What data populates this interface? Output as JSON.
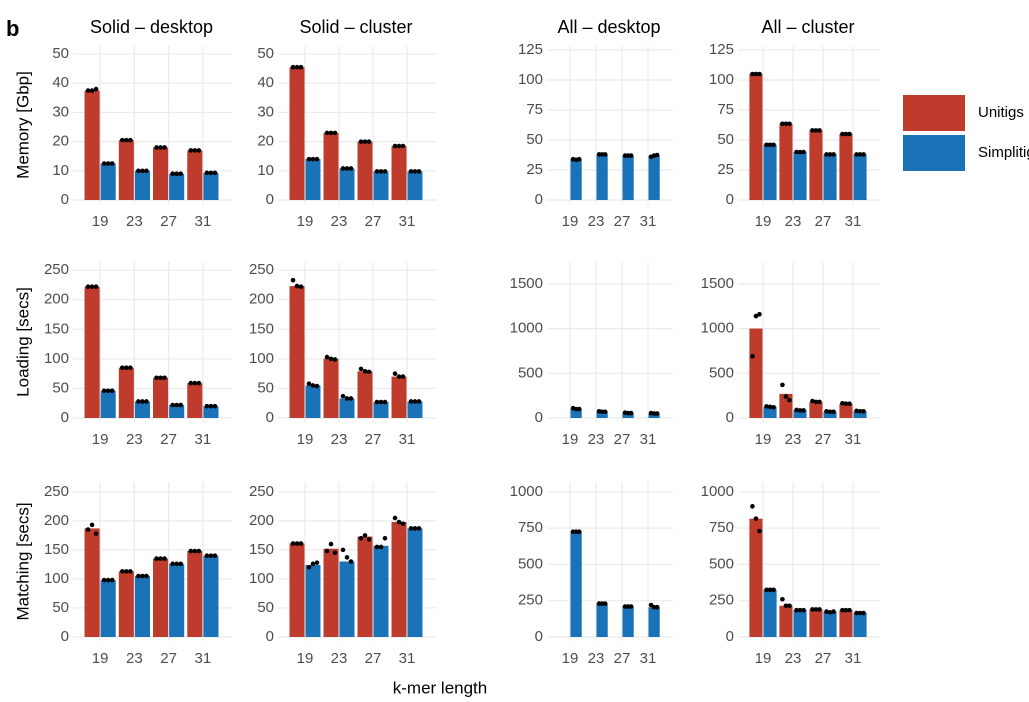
{
  "panel_label": "b",
  "xlabel": "k-mer length",
  "chart_data": [
    {
      "type": "bar",
      "title": "Solid – desktop",
      "ylabel": "Memory [Gbp]",
      "categories": [
        "19",
        "23",
        "27",
        "31"
      ],
      "ylim": [
        0,
        51.4
      ],
      "yticks": [
        0,
        10,
        20,
        30,
        40,
        50
      ],
      "grid": true,
      "series": [
        {
          "name": "Unitigs",
          "color": "#bf3b2b",
          "values": [
            37.5,
            20.5,
            18,
            17
          ],
          "points": [
            [
              37.5,
              37.5,
              38
            ],
            [
              20.5,
              20.5,
              20.5
            ],
            [
              18,
              18,
              18
            ],
            [
              17,
              17,
              17
            ]
          ]
        },
        {
          "name": "Simplitigs",
          "color": "#1a73b6",
          "values": [
            12.5,
            10,
            9,
            9.3
          ],
          "points": [
            [
              12.5,
              12.5,
              12.5
            ],
            [
              10,
              10,
              10
            ],
            [
              9,
              9,
              9
            ],
            [
              9.3,
              9.3,
              9.3
            ]
          ]
        }
      ]
    },
    {
      "type": "bar",
      "title": "Solid – cluster",
      "categories": [
        "19",
        "23",
        "27",
        "31"
      ],
      "ylim": [
        0,
        51.4
      ],
      "yticks": [
        0,
        10,
        20,
        30,
        40,
        50
      ],
      "grid": true,
      "series": [
        {
          "name": "Unitigs",
          "color": "#bf3b2b",
          "values": [
            45.5,
            23,
            20,
            18.5
          ],
          "points": [
            [
              45.5,
              45.5,
              45.5
            ],
            [
              23,
              23,
              23
            ],
            [
              20,
              20,
              20
            ],
            [
              18.5,
              18.5,
              18.5
            ]
          ]
        },
        {
          "name": "Simplitigs",
          "color": "#1a73b6",
          "values": [
            14,
            10.8,
            9.8,
            9.8
          ],
          "points": [
            [
              14,
              14,
              14
            ],
            [
              10.8,
              10.8,
              10.8
            ],
            [
              9.8,
              9.8,
              9.8
            ],
            [
              9.8,
              9.8,
              9.8
            ]
          ]
        }
      ]
    },
    {
      "type": "bar",
      "title": "All – desktop",
      "categories": [
        "19",
        "23",
        "27",
        "31"
      ],
      "ylim": [
        0,
        125
      ],
      "yticks": [
        0,
        25,
        50,
        75,
        100,
        125
      ],
      "grid": true,
      "series": [
        {
          "name": "Unitigs",
          "color": "#bf3b2b",
          "values": [
            null,
            null,
            null,
            null
          ],
          "points": [
            null,
            null,
            null,
            null
          ]
        },
        {
          "name": "Simplitigs",
          "color": "#1a73b6",
          "values": [
            34,
            38,
            37,
            37
          ],
          "points": [
            [
              34,
              33.5,
              34
            ],
            [
              38,
              38,
              38
            ],
            [
              37,
              37,
              37
            ],
            [
              36,
              37,
              37.5
            ]
          ]
        }
      ]
    },
    {
      "type": "bar",
      "title": "All – cluster",
      "categories": [
        "19",
        "23",
        "27",
        "31"
      ],
      "ylim": [
        0,
        125
      ],
      "yticks": [
        0,
        25,
        50,
        75,
        100,
        125
      ],
      "grid": true,
      "series": [
        {
          "name": "Unitigs",
          "color": "#bf3b2b",
          "values": [
            105,
            63.5,
            58,
            55
          ],
          "points": [
            [
              105,
              105,
              105
            ],
            [
              63.5,
              63.5,
              63.5
            ],
            [
              58,
              58,
              58
            ],
            [
              55,
              55,
              55
            ]
          ]
        },
        {
          "name": "Simplitigs",
          "color": "#1a73b6",
          "values": [
            46,
            40,
            38,
            38
          ],
          "points": [
            [
              46,
              46,
              46
            ],
            [
              40,
              40,
              40
            ],
            [
              38,
              38,
              38
            ],
            [
              38,
              38,
              38
            ]
          ]
        }
      ]
    },
    {
      "type": "bar",
      "ylabel": "Loading [secs]",
      "categories": [
        "19",
        "23",
        "27",
        "31"
      ],
      "ylim": [
        0,
        257
      ],
      "yticks": [
        0,
        50,
        100,
        150,
        200,
        250
      ],
      "grid": true,
      "series": [
        {
          "name": "Unitigs",
          "color": "#bf3b2b",
          "values": [
            222,
            85,
            68,
            59
          ],
          "points": [
            [
              222,
              222,
              222
            ],
            [
              85,
              85,
              85
            ],
            [
              68,
              68,
              68
            ],
            [
              59,
              59,
              59
            ]
          ]
        },
        {
          "name": "Simplitigs",
          "color": "#1a73b6",
          "values": [
            46,
            28,
            22,
            20
          ],
          "points": [
            [
              46,
              46,
              46
            ],
            [
              28,
              28,
              28
            ],
            [
              22,
              22,
              22
            ],
            [
              20,
              20,
              20
            ]
          ]
        }
      ]
    },
    {
      "type": "bar",
      "categories": [
        "19",
        "23",
        "27",
        "31"
      ],
      "ylim": [
        0,
        257
      ],
      "yticks": [
        0,
        50,
        100,
        150,
        200,
        250
      ],
      "grid": true,
      "series": [
        {
          "name": "Unitigs",
          "color": "#bf3b2b",
          "values": [
            223,
            100,
            79,
            70
          ],
          "points": [
            [
              233,
              223,
              222
            ],
            [
              103,
              100,
              99
            ],
            [
              83,
              79,
              78
            ],
            [
              75,
              70,
              70
            ]
          ]
        },
        {
          "name": "Simplitigs",
          "color": "#1a73b6",
          "values": [
            55,
            33,
            27,
            28
          ],
          "points": [
            [
              58,
              55,
              54
            ],
            [
              37,
              33,
              33
            ],
            [
              27,
              27,
              27
            ],
            [
              28,
              28,
              28
            ]
          ]
        }
      ]
    },
    {
      "type": "bar",
      "categories": [
        "19",
        "23",
        "27",
        "31"
      ],
      "ylim": [
        0,
        1700
      ],
      "yticks": [
        0,
        500,
        1000,
        1500
      ],
      "grid": true,
      "series": [
        {
          "name": "Unitigs",
          "color": "#bf3b2b",
          "values": [
            null,
            null,
            null,
            null
          ],
          "points": [
            null,
            null,
            null,
            null
          ]
        },
        {
          "name": "Simplitigs",
          "color": "#1a73b6",
          "values": [
            100,
            70,
            55,
            50
          ],
          "points": [
            [
              110,
              100,
              100
            ],
            [
              75,
              70,
              70
            ],
            [
              60,
              55,
              55
            ],
            [
              55,
              50,
              50
            ]
          ]
        }
      ]
    },
    {
      "type": "bar",
      "categories": [
        "19",
        "23",
        "27",
        "31"
      ],
      "ylim": [
        0,
        1700
      ],
      "yticks": [
        0,
        500,
        1000,
        1500
      ],
      "grid": true,
      "series": [
        {
          "name": "Unitigs",
          "color": "#bf3b2b",
          "values": [
            1000,
            270,
            180,
            160
          ],
          "points": [
            [
              690,
              1140,
              1160
            ],
            [
              370,
              240,
              200
            ],
            [
              190,
              180,
              180
            ],
            [
              165,
              160,
              160
            ]
          ]
        },
        {
          "name": "Simplitigs",
          "color": "#1a73b6",
          "values": [
            125,
            85,
            70,
            75
          ],
          "points": [
            [
              130,
              125,
              120
            ],
            [
              90,
              85,
              85
            ],
            [
              75,
              70,
              70
            ],
            [
              80,
              75,
              75
            ]
          ]
        }
      ]
    },
    {
      "type": "bar",
      "ylabel": "Matching [secs]",
      "categories": [
        "19",
        "23",
        "27",
        "31"
      ],
      "ylim": [
        0,
        260
      ],
      "yticks": [
        0,
        50,
        100,
        150,
        200,
        250
      ],
      "grid": true,
      "series": [
        {
          "name": "Unitigs",
          "color": "#bf3b2b",
          "values": [
            187,
            113,
            135,
            148
          ],
          "points": [
            [
              185,
              193,
              178
            ],
            [
              113,
              113,
              113
            ],
            [
              135,
              135,
              135
            ],
            [
              148,
              148,
              148
            ]
          ]
        },
        {
          "name": "Simplitigs",
          "color": "#1a73b6",
          "values": [
            98,
            105,
            126,
            140
          ],
          "points": [
            [
              98,
              98,
              98
            ],
            [
              105,
              105,
              105
            ],
            [
              126,
              126,
              126
            ],
            [
              140,
              140,
              140
            ]
          ]
        }
      ]
    },
    {
      "type": "bar",
      "categories": [
        "19",
        "23",
        "27",
        "31"
      ],
      "ylim": [
        0,
        260
      ],
      "yticks": [
        0,
        50,
        100,
        150,
        200,
        250
      ],
      "grid": true,
      "series": [
        {
          "name": "Unitigs",
          "color": "#bf3b2b",
          "values": [
            161,
            152,
            173,
            198
          ],
          "points": [
            [
              161,
              161,
              161
            ],
            [
              148,
              160,
              145
            ],
            [
              170,
              175,
              168
            ],
            [
              205,
              198,
              195
            ]
          ]
        },
        {
          "name": "Simplitigs",
          "color": "#1a73b6",
          "values": [
            124,
            130,
            157,
            187
          ],
          "points": [
            [
              120,
              126,
              128
            ],
            [
              150,
              137,
              130
            ],
            [
              155,
              155,
              170
            ],
            [
              187,
              187,
              187
            ]
          ]
        }
      ]
    },
    {
      "type": "bar",
      "categories": [
        "19",
        "23",
        "27",
        "31"
      ],
      "ylim": [
        0,
        1040
      ],
      "yticks": [
        0,
        250,
        500,
        750,
        1000
      ],
      "grid": true,
      "series": [
        {
          "name": "Unitigs",
          "color": "#bf3b2b",
          "values": [
            null,
            null,
            null,
            null
          ],
          "points": [
            null,
            null,
            null,
            null
          ]
        },
        {
          "name": "Simplitigs",
          "color": "#1a73b6",
          "values": [
            725,
            230,
            210,
            205
          ],
          "points": [
            [
              725,
              725,
              725
            ],
            [
              230,
              230,
              230
            ],
            [
              210,
              210,
              210
            ],
            [
              220,
              205,
              205
            ]
          ]
        }
      ]
    },
    {
      "type": "bar",
      "categories": [
        "19",
        "23",
        "27",
        "31"
      ],
      "ylim": [
        0,
        1040
      ],
      "yticks": [
        0,
        250,
        500,
        750,
        1000
      ],
      "grid": true,
      "series": [
        {
          "name": "Unitigs",
          "color": "#bf3b2b",
          "values": [
            815,
            215,
            190,
            185
          ],
          "points": [
            [
              900,
              815,
              730
            ],
            [
              260,
              215,
              215
            ],
            [
              190,
              190,
              190
            ],
            [
              185,
              185,
              185
            ]
          ]
        },
        {
          "name": "Simplitigs",
          "color": "#1a73b6",
          "values": [
            325,
            185,
            175,
            165
          ],
          "points": [
            [
              325,
              325,
              325
            ],
            [
              185,
              185,
              185
            ],
            [
              175,
              170,
              175
            ],
            [
              165,
              165,
              165
            ]
          ]
        }
      ]
    }
  ]
}
